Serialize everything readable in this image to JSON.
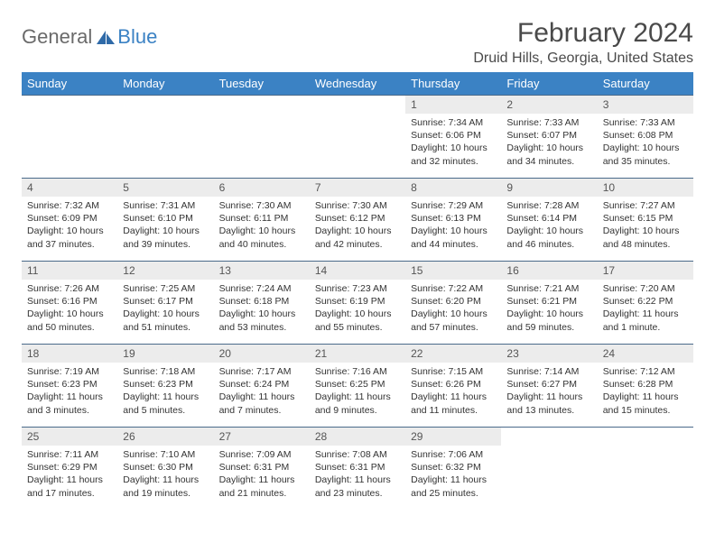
{
  "logo": {
    "text1": "General",
    "text2": "Blue"
  },
  "title": "February 2024",
  "location": "Druid Hills, Georgia, United States",
  "colors": {
    "header_bg": "#3b82c4",
    "header_fg": "#ffffff",
    "daynum_bg": "#ececec",
    "row_border": "#4a6a8a",
    "text": "#333333",
    "title_color": "#4a4a4a"
  },
  "day_names": [
    "Sunday",
    "Monday",
    "Tuesday",
    "Wednesday",
    "Thursday",
    "Friday",
    "Saturday"
  ],
  "weeks": [
    [
      {
        "n": "",
        "t": "",
        "empty": true
      },
      {
        "n": "",
        "t": "",
        "empty": true
      },
      {
        "n": "",
        "t": "",
        "empty": true
      },
      {
        "n": "",
        "t": "",
        "empty": true
      },
      {
        "n": "1",
        "t": "Sunrise: 7:34 AM\nSunset: 6:06 PM\nDaylight: 10 hours and 32 minutes."
      },
      {
        "n": "2",
        "t": "Sunrise: 7:33 AM\nSunset: 6:07 PM\nDaylight: 10 hours and 34 minutes."
      },
      {
        "n": "3",
        "t": "Sunrise: 7:33 AM\nSunset: 6:08 PM\nDaylight: 10 hours and 35 minutes."
      }
    ],
    [
      {
        "n": "4",
        "t": "Sunrise: 7:32 AM\nSunset: 6:09 PM\nDaylight: 10 hours and 37 minutes."
      },
      {
        "n": "5",
        "t": "Sunrise: 7:31 AM\nSunset: 6:10 PM\nDaylight: 10 hours and 39 minutes."
      },
      {
        "n": "6",
        "t": "Sunrise: 7:30 AM\nSunset: 6:11 PM\nDaylight: 10 hours and 40 minutes."
      },
      {
        "n": "7",
        "t": "Sunrise: 7:30 AM\nSunset: 6:12 PM\nDaylight: 10 hours and 42 minutes."
      },
      {
        "n": "8",
        "t": "Sunrise: 7:29 AM\nSunset: 6:13 PM\nDaylight: 10 hours and 44 minutes."
      },
      {
        "n": "9",
        "t": "Sunrise: 7:28 AM\nSunset: 6:14 PM\nDaylight: 10 hours and 46 minutes."
      },
      {
        "n": "10",
        "t": "Sunrise: 7:27 AM\nSunset: 6:15 PM\nDaylight: 10 hours and 48 minutes."
      }
    ],
    [
      {
        "n": "11",
        "t": "Sunrise: 7:26 AM\nSunset: 6:16 PM\nDaylight: 10 hours and 50 minutes."
      },
      {
        "n": "12",
        "t": "Sunrise: 7:25 AM\nSunset: 6:17 PM\nDaylight: 10 hours and 51 minutes."
      },
      {
        "n": "13",
        "t": "Sunrise: 7:24 AM\nSunset: 6:18 PM\nDaylight: 10 hours and 53 minutes."
      },
      {
        "n": "14",
        "t": "Sunrise: 7:23 AM\nSunset: 6:19 PM\nDaylight: 10 hours and 55 minutes."
      },
      {
        "n": "15",
        "t": "Sunrise: 7:22 AM\nSunset: 6:20 PM\nDaylight: 10 hours and 57 minutes."
      },
      {
        "n": "16",
        "t": "Sunrise: 7:21 AM\nSunset: 6:21 PM\nDaylight: 10 hours and 59 minutes."
      },
      {
        "n": "17",
        "t": "Sunrise: 7:20 AM\nSunset: 6:22 PM\nDaylight: 11 hours and 1 minute."
      }
    ],
    [
      {
        "n": "18",
        "t": "Sunrise: 7:19 AM\nSunset: 6:23 PM\nDaylight: 11 hours and 3 minutes."
      },
      {
        "n": "19",
        "t": "Sunrise: 7:18 AM\nSunset: 6:23 PM\nDaylight: 11 hours and 5 minutes."
      },
      {
        "n": "20",
        "t": "Sunrise: 7:17 AM\nSunset: 6:24 PM\nDaylight: 11 hours and 7 minutes."
      },
      {
        "n": "21",
        "t": "Sunrise: 7:16 AM\nSunset: 6:25 PM\nDaylight: 11 hours and 9 minutes."
      },
      {
        "n": "22",
        "t": "Sunrise: 7:15 AM\nSunset: 6:26 PM\nDaylight: 11 hours and 11 minutes."
      },
      {
        "n": "23",
        "t": "Sunrise: 7:14 AM\nSunset: 6:27 PM\nDaylight: 11 hours and 13 minutes."
      },
      {
        "n": "24",
        "t": "Sunrise: 7:12 AM\nSunset: 6:28 PM\nDaylight: 11 hours and 15 minutes."
      }
    ],
    [
      {
        "n": "25",
        "t": "Sunrise: 7:11 AM\nSunset: 6:29 PM\nDaylight: 11 hours and 17 minutes."
      },
      {
        "n": "26",
        "t": "Sunrise: 7:10 AM\nSunset: 6:30 PM\nDaylight: 11 hours and 19 minutes."
      },
      {
        "n": "27",
        "t": "Sunrise: 7:09 AM\nSunset: 6:31 PM\nDaylight: 11 hours and 21 minutes."
      },
      {
        "n": "28",
        "t": "Sunrise: 7:08 AM\nSunset: 6:31 PM\nDaylight: 11 hours and 23 minutes."
      },
      {
        "n": "29",
        "t": "Sunrise: 7:06 AM\nSunset: 6:32 PM\nDaylight: 11 hours and 25 minutes."
      },
      {
        "n": "",
        "t": "",
        "empty": true
      },
      {
        "n": "",
        "t": "",
        "empty": true
      }
    ]
  ]
}
